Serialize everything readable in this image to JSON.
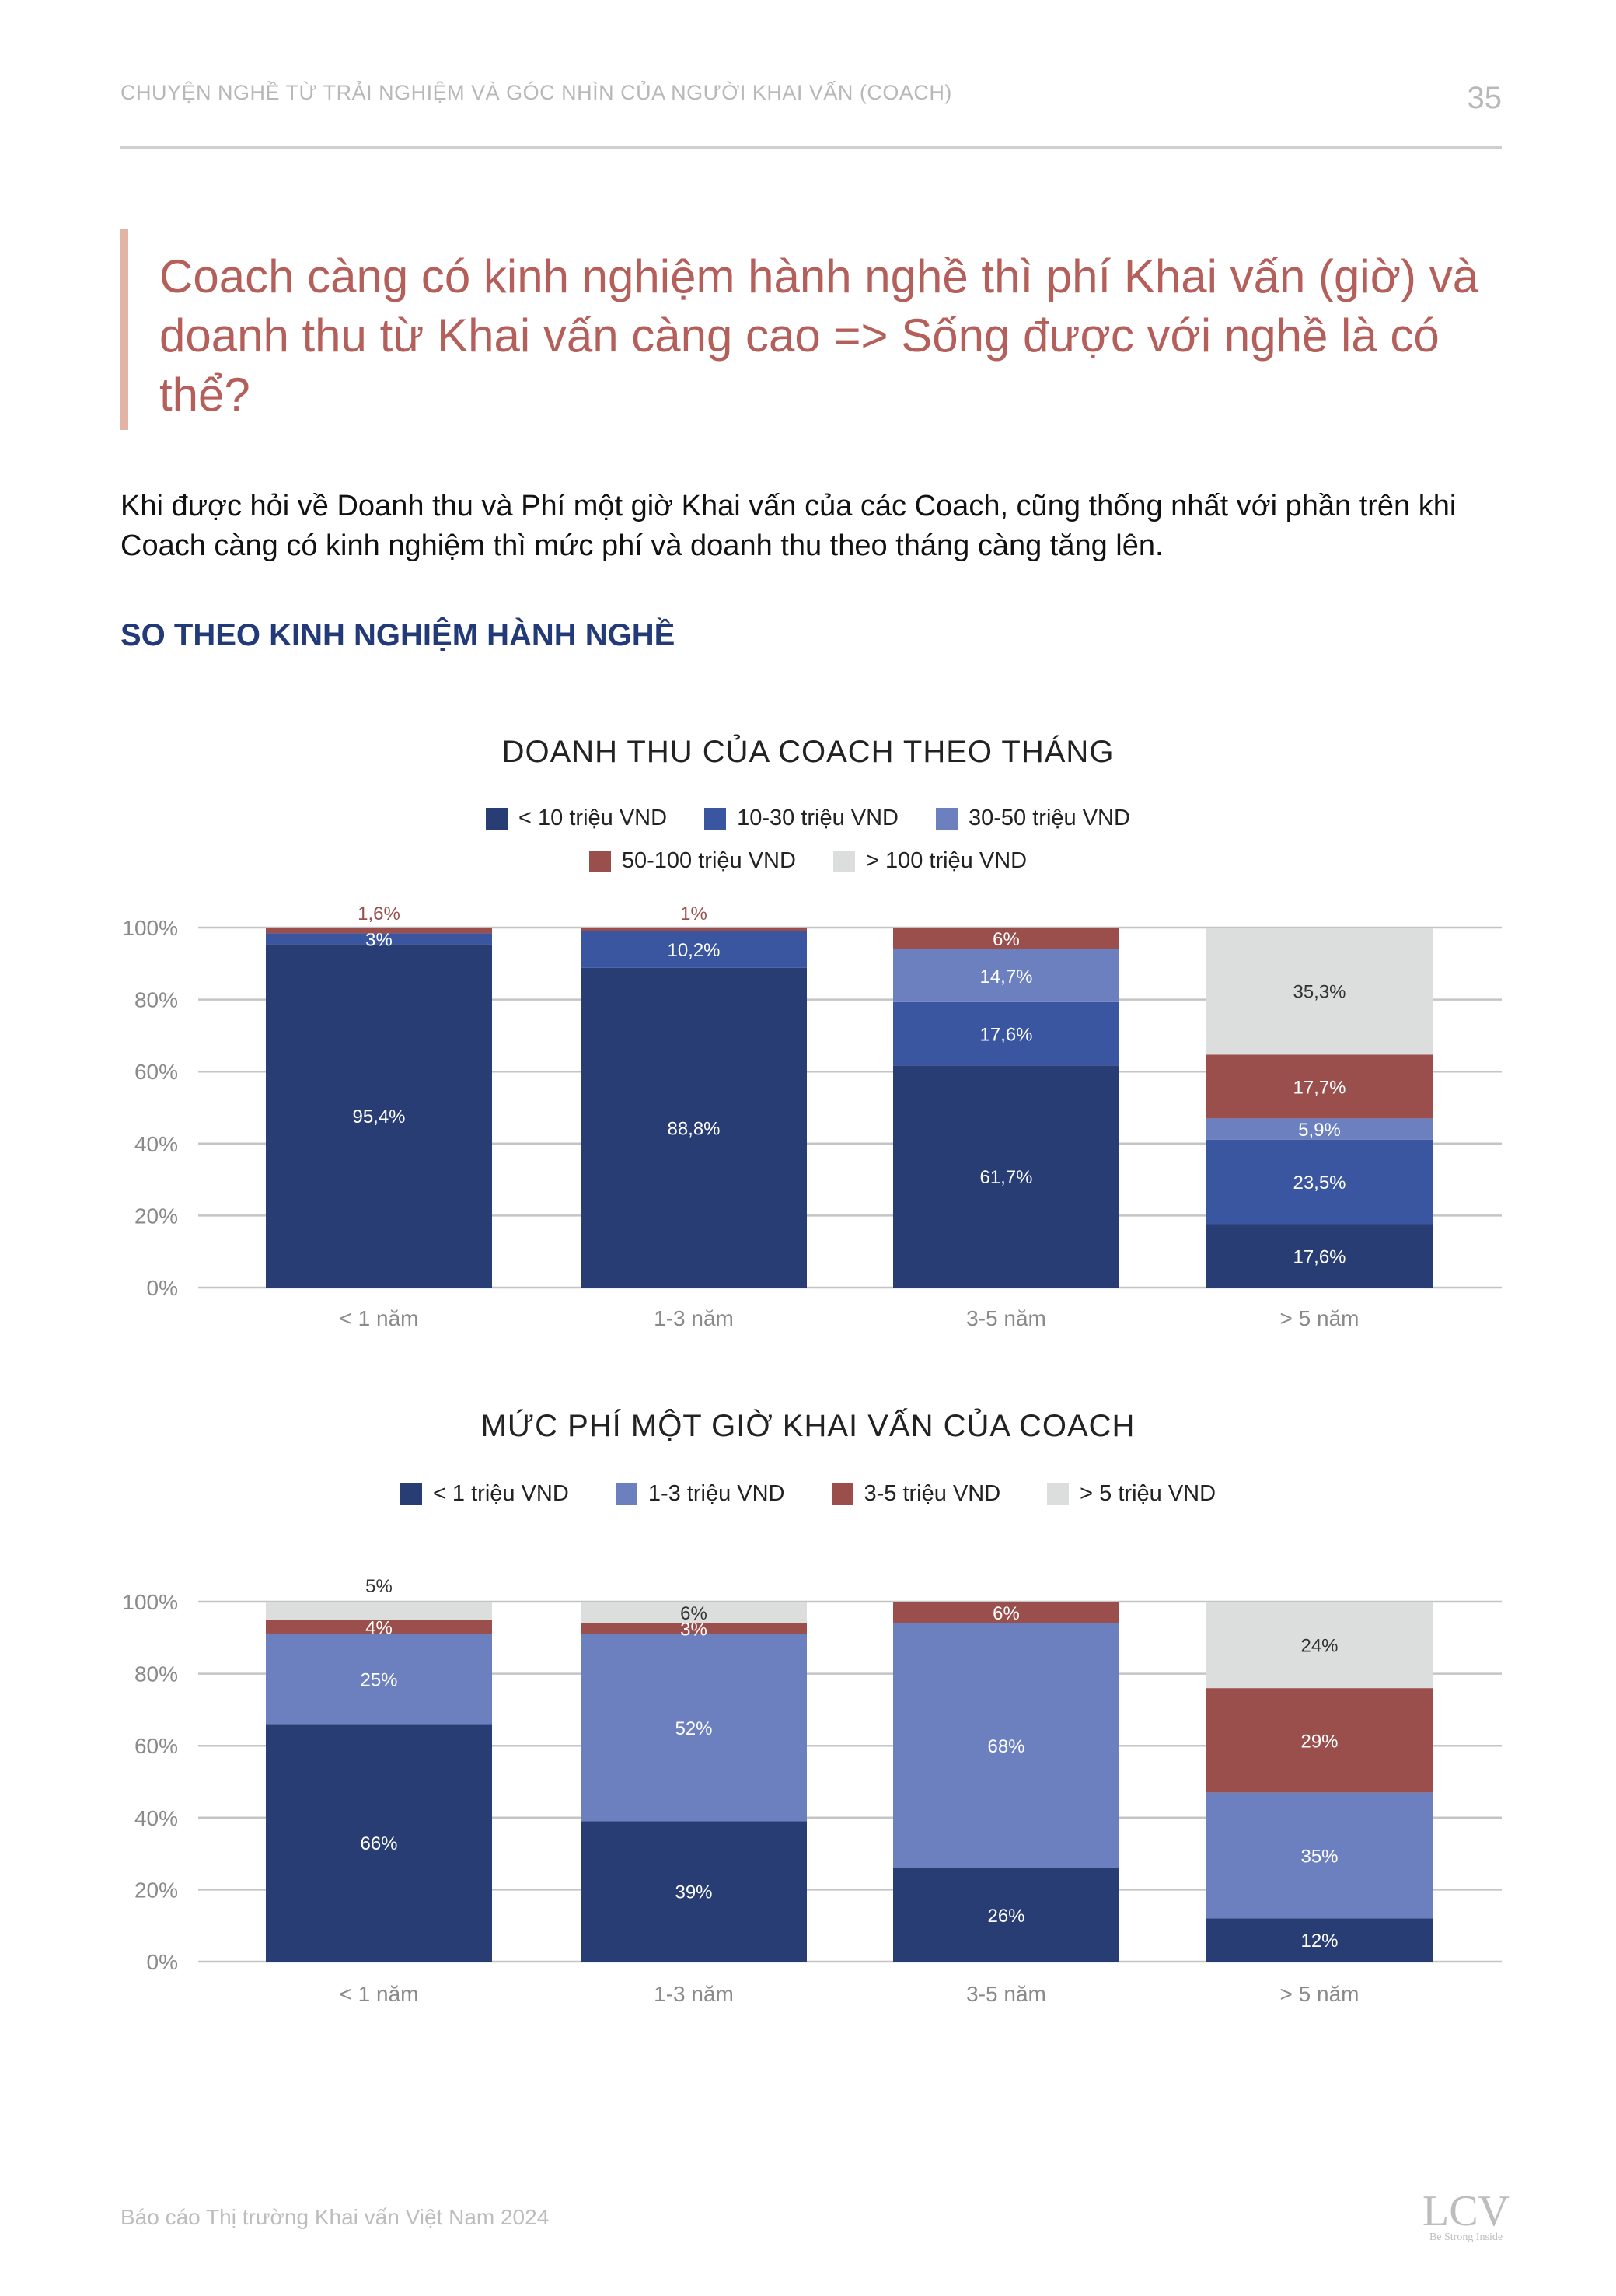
{
  "header": {
    "running_title": "CHUYỆN NGHỀ TỪ TRẢI NGHIỆM VÀ GÓC NHÌN CỦA NGƯỜI KHAI VẤN (COACH)",
    "page_number": "35"
  },
  "headline": "Coach càng có kinh nghiệm hành nghề thì phí Khai vấn (giờ) và doanh thu từ Khai vấn càng cao => Sống được với nghề là có thể?",
  "intro": "Khi được hỏi về Doanh thu và Phí một giờ Khai vấn của các Coach, cũng thống nhất với phần trên khi Coach càng có kinh nghiệm thì mức phí và doanh thu theo tháng càng tăng lên.",
  "section_heading": "SO THEO KINH NGHIỆM HÀNH NGHỀ",
  "footer": {
    "text": "Báo cáo Thị trường Khai vấn Việt Nam 2024",
    "logo": "LCV",
    "logo_tagline": "Be Strong Inside"
  },
  "chart_data": [
    {
      "type": "bar",
      "stacked": true,
      "title": "DOANH THU CỦA COACH THEO THÁNG",
      "categories": [
        "< 1 năm",
        "1-3 năm",
        "3-5 năm",
        "> 5 năm"
      ],
      "y_ticks": [
        "0%",
        "20%",
        "40%",
        "60%",
        "80%",
        "100%"
      ],
      "ylim": [
        0,
        100
      ],
      "series": [
        {
          "name": "< 10 triệu VND",
          "color": "#283d73",
          "values": [
            95.4,
            88.8,
            61.7,
            17.6
          ],
          "labels": [
            "95,4%",
            "88,8%",
            "61,7%",
            "17,6%"
          ]
        },
        {
          "name": "10-30 triệu VND",
          "color": "#3a56a0",
          "values": [
            3,
            10.2,
            17.6,
            23.5
          ],
          "labels": [
            "3%",
            "10,2%",
            "17,6%",
            "23,5%"
          ]
        },
        {
          "name": "30-50 triệu VND",
          "color": "#6c80c0",
          "values": [
            0,
            0,
            14.7,
            5.9
          ],
          "labels": [
            "",
            "",
            "14,7%",
            "5,9%"
          ]
        },
        {
          "name": "50-100 triệu VND",
          "color": "#9a4f4c",
          "values": [
            1.6,
            1,
            6,
            17.7
          ],
          "labels": [
            "1,6%",
            "1%",
            "6%",
            "17,7%"
          ]
        },
        {
          "name": "> 100 triệu VND",
          "color": "#dcdddd",
          "values": [
            0,
            0,
            0,
            35.3
          ],
          "labels": [
            "",
            "",
            "",
            "35,3%"
          ]
        }
      ]
    },
    {
      "type": "bar",
      "stacked": true,
      "title": "MỨC PHÍ MỘT GIỜ KHAI VẤN CỦA COACH",
      "categories": [
        "< 1 năm",
        "1-3 năm",
        "3-5 năm",
        "> 5 năm"
      ],
      "y_ticks": [
        "0%",
        "20%",
        "40%",
        "60%",
        "80%",
        "100%"
      ],
      "ylim": [
        0,
        100
      ],
      "series": [
        {
          "name": "< 1 triệu VND",
          "color": "#283d73",
          "values": [
            66,
            39,
            26,
            12
          ],
          "labels": [
            "66%",
            "39%",
            "26%",
            "12%"
          ]
        },
        {
          "name": "1-3 triệu VND",
          "color": "#6c80c0",
          "values": [
            25,
            52,
            68,
            35
          ],
          "labels": [
            "25%",
            "52%",
            "68%",
            "35%"
          ]
        },
        {
          "name": "3-5 triệu VND",
          "color": "#9a4f4c",
          "values": [
            4,
            3,
            6,
            29
          ],
          "labels": [
            "4%",
            "3%",
            "6%",
            "29%"
          ]
        },
        {
          "name": "> 5 triệu VND",
          "color": "#dcdddd",
          "values": [
            5,
            6,
            0,
            24
          ],
          "labels": [
            "5%",
            "6%",
            "",
            "24%"
          ]
        }
      ]
    }
  ]
}
